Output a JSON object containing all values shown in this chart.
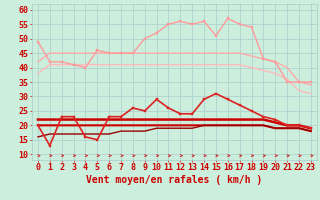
{
  "title": "Vent moyen/en rafales ( km/h )",
  "background_color": "#cceedd",
  "grid_color": "#aacccc",
  "x_ticks": [
    0,
    1,
    2,
    3,
    4,
    5,
    6,
    7,
    8,
    9,
    10,
    11,
    12,
    13,
    14,
    15,
    16,
    17,
    18,
    19,
    20,
    21,
    22,
    23
  ],
  "ylim": [
    8,
    62
  ],
  "yticks": [
    10,
    15,
    20,
    25,
    30,
    35,
    40,
    45,
    50,
    55,
    60
  ],
  "series": [
    {
      "name": "rafales_max",
      "color": "#ff9999",
      "linewidth": 1.0,
      "marker": "s",
      "markersize": 2.0,
      "values": [
        49,
        42,
        42,
        41,
        40,
        46,
        45,
        45,
        45,
        50,
        52,
        55,
        56,
        55,
        56,
        51,
        57,
        55,
        54,
        43,
        42,
        35,
        35,
        35
      ]
    },
    {
      "name": "rafales_upper",
      "color": "#ffaaaa",
      "linewidth": 1.0,
      "marker": null,
      "markersize": 0,
      "values": [
        42,
        45,
        45,
        45,
        45,
        45,
        45,
        45,
        45,
        45,
        45,
        45,
        45,
        45,
        45,
        45,
        45,
        45,
        44,
        43,
        42,
        40,
        35,
        34
      ]
    },
    {
      "name": "rafales_lower",
      "color": "#ffbbbb",
      "linewidth": 1.0,
      "marker": null,
      "markersize": 0,
      "values": [
        38,
        41,
        41,
        41,
        41,
        41,
        41,
        41,
        41,
        41,
        41,
        41,
        41,
        41,
        41,
        41,
        41,
        41,
        40,
        39,
        38,
        36,
        32,
        31
      ]
    },
    {
      "name": "vent_max",
      "color": "#dd2222",
      "linewidth": 1.2,
      "marker": "s",
      "markersize": 2.0,
      "values": [
        20,
        13,
        23,
        23,
        16,
        15,
        23,
        23,
        26,
        25,
        29,
        26,
        24,
        24,
        29,
        31,
        29,
        27,
        25,
        23,
        22,
        20,
        20,
        19
      ]
    },
    {
      "name": "vent_moy_upper",
      "color": "#cc0000",
      "linewidth": 1.8,
      "marker": null,
      "markersize": 0,
      "values": [
        22,
        22,
        22,
        22,
        22,
        22,
        22,
        22,
        22,
        22,
        22,
        22,
        22,
        22,
        22,
        22,
        22,
        22,
        22,
        22,
        21,
        20,
        20,
        19
      ]
    },
    {
      "name": "vent_moy_lower",
      "color": "#cc0000",
      "linewidth": 1.5,
      "marker": null,
      "markersize": 0,
      "values": [
        20,
        20,
        20,
        20,
        20,
        20,
        20,
        20,
        20,
        20,
        20,
        20,
        20,
        20,
        20,
        20,
        20,
        20,
        20,
        20,
        19,
        19,
        19,
        18
      ]
    },
    {
      "name": "vent_min",
      "color": "#990000",
      "linewidth": 1.0,
      "marker": null,
      "markersize": 0,
      "values": [
        16,
        17,
        17,
        17,
        17,
        17,
        17,
        18,
        18,
        18,
        19,
        19,
        19,
        19,
        20,
        20,
        20,
        20,
        20,
        20,
        19,
        19,
        19,
        18
      ]
    }
  ],
  "arrow_color": "#cc2222",
  "xlabel_color": "#cc0000",
  "xlabel_fontsize": 7,
  "tick_fontsize": 6,
  "tick_color": "#cc0000"
}
